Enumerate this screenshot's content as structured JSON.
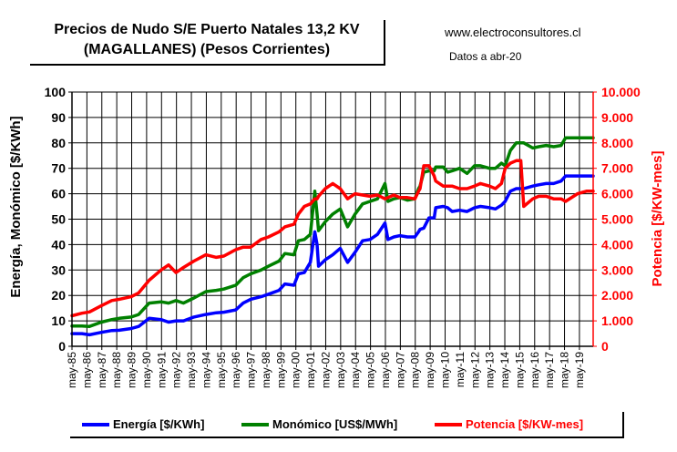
{
  "header": {
    "title_line1": "Precios de Nudo S/E Puerto Natales 13,2 KV",
    "title_line2": "(MAGALLANES) (Pesos Corrientes)",
    "website": "www.electroconsultores.cl",
    "data_date": "Datos a abr-20"
  },
  "chart_data": {
    "type": "line",
    "xlabel": "",
    "ylabel": "Energía, Monómico [$/KWh]",
    "y2label": "Potencia [$/KW-mes]",
    "ylim": [
      0,
      100
    ],
    "y2lim": [
      0,
      10000
    ],
    "y_ticks": [
      "0",
      "10",
      "20",
      "30",
      "40",
      "50",
      "60",
      "70",
      "80",
      "90",
      "100"
    ],
    "y2_ticks": [
      "0",
      "1.000",
      "2.000",
      "3.000",
      "4.000",
      "5.000",
      "6.000",
      "7.000",
      "8.000",
      "9.000",
      "10.000"
    ],
    "xlim": [
      1985.33,
      2020.25
    ],
    "categories": [
      "may-85",
      "may-86",
      "may-87",
      "may-88",
      "may-89",
      "may-90",
      "may-91",
      "may-92",
      "may-93",
      "may-94",
      "may-95",
      "may-96",
      "may-97",
      "may-98",
      "may-99",
      "may-00",
      "may-01",
      "may-02",
      "may-03",
      "may-04",
      "may-05",
      "may-06",
      "may-07",
      "may-08",
      "may-09",
      "may-10",
      "may-11",
      "may-12",
      "may-13",
      "may-14",
      "may-15",
      "may-16",
      "may-17",
      "may-18",
      "may-19"
    ],
    "grid": true,
    "legend_position": "bottom",
    "series": [
      {
        "name": "Energía [$/KWh]",
        "color": "#0000FF",
        "axis": "left",
        "x": [
          1985.33,
          1986,
          1986.5,
          1987.3,
          1988,
          1988.5,
          1989.3,
          1989.8,
          1990.5,
          1991.3,
          1991.8,
          1992.3,
          1992.8,
          1993.5,
          1994.3,
          1995,
          1995.5,
          1996.3,
          1996.8,
          1997.3,
          1998,
          1998.5,
          1999.2,
          1999.6,
          2000.2,
          2000.5,
          2000.9,
          2001.3,
          2001.6,
          2001.75,
          2001.85,
          2002.3,
          2002.8,
          2003.3,
          2003.8,
          2004.3,
          2004.8,
          2005.3,
          2005.8,
          2006.3,
          2006.5,
          2006.9,
          2007.3,
          2007.8,
          2008.3,
          2008.55,
          2008.65,
          2008.9,
          2009.25,
          2009.6,
          2009.7,
          2010.2,
          2010.5,
          2010.8,
          2011.3,
          2011.8,
          2012.3,
          2012.7,
          2013.3,
          2013.7,
          2014.1,
          2014.35,
          2014.7,
          2015.1,
          2015.4,
          2015.6,
          2016.2,
          2016.6,
          2017.1,
          2017.6,
          2018.1,
          2018.4,
          2019.2,
          2019.8,
          2020.25
        ],
        "values": [
          5,
          5,
          4.5,
          5.5,
          6.2,
          6.3,
          7,
          7.8,
          11,
          10.5,
          9.5,
          10,
          10,
          11.5,
          12.5,
          13.2,
          13.4,
          14.3,
          17,
          18.5,
          19.5,
          20.5,
          22,
          24.5,
          24,
          28.5,
          29,
          33,
          45,
          40,
          31.5,
          34,
          36,
          38.5,
          33,
          37,
          41.5,
          42,
          44,
          48.5,
          42,
          43,
          43.5,
          43,
          43,
          45,
          46,
          46.5,
          50.5,
          50.5,
          54.5,
          55,
          54.5,
          53,
          53.5,
          53,
          54.5,
          55,
          54.5,
          54,
          55.5,
          57,
          61,
          62,
          62,
          62,
          63,
          63.5,
          64,
          64,
          65,
          67,
          67,
          67,
          67
        ]
      },
      {
        "name": "Monómico [US$/MWh]",
        "color": "#008000",
        "axis": "left",
        "x": [
          1985.33,
          1986,
          1986.5,
          1987.3,
          1988,
          1988.5,
          1989.3,
          1989.8,
          1990.5,
          1991.3,
          1991.8,
          1992.3,
          1992.8,
          1993.5,
          1994.3,
          1995,
          1995.5,
          1996.3,
          1996.8,
          1997.3,
          1998,
          1998.5,
          1999.2,
          1999.6,
          2000.2,
          2000.5,
          2000.9,
          2001.3,
          2001.6,
          2001.75,
          2001.85,
          2002.3,
          2002.8,
          2003.3,
          2003.8,
          2004.3,
          2004.8,
          2005.3,
          2005.8,
          2006.3,
          2006.5,
          2006.9,
          2007.3,
          2007.8,
          2008.3,
          2008.55,
          2008.65,
          2008.9,
          2009.25,
          2009.6,
          2009.7,
          2010.2,
          2010.5,
          2010.8,
          2011.3,
          2011.8,
          2012.3,
          2012.7,
          2013.3,
          2013.7,
          2014.1,
          2014.35,
          2014.7,
          2015.1,
          2015.4,
          2015.6,
          2016.2,
          2016.6,
          2017.1,
          2017.6,
          2018.1,
          2018.4,
          2019.2,
          2019.8,
          2020.25
        ],
        "values": [
          8,
          8,
          7.8,
          9.5,
          10.5,
          11,
          11.5,
          12.5,
          17,
          17.5,
          17,
          18,
          17,
          19,
          21.5,
          22,
          22.5,
          24,
          27,
          28.5,
          30,
          31.5,
          33.5,
          36.5,
          36,
          41.5,
          42,
          44,
          61,
          52,
          45.5,
          49,
          52,
          54,
          47,
          52,
          56,
          57,
          58,
          64,
          57,
          58,
          58.5,
          57.5,
          58,
          62,
          63,
          68.5,
          69,
          69,
          70.5,
          70.5,
          68.5,
          69,
          70,
          68,
          71,
          71,
          70,
          70,
          72,
          71,
          77,
          80,
          80,
          80,
          78,
          78.5,
          79,
          78.5,
          79,
          82,
          82,
          82,
          82
        ]
      },
      {
        "name": "Potencia [$/KW-mes]",
        "color": "#FF0000",
        "axis": "right",
        "x": [
          1985.33,
          1986,
          1986.5,
          1987.3,
          1988,
          1988.5,
          1989.3,
          1989.8,
          1990.5,
          1991.3,
          1991.8,
          1992.3,
          1992.8,
          1993.5,
          1994.3,
          1995,
          1995.5,
          1996.3,
          1996.8,
          1997.3,
          1998,
          1998.5,
          1999.2,
          1999.6,
          2000.2,
          2000.5,
          2000.9,
          2001.3,
          2001.6,
          2001.75,
          2001.85,
          2002.3,
          2002.8,
          2003.3,
          2003.8,
          2004.3,
          2004.8,
          2005.3,
          2005.8,
          2006.3,
          2006.5,
          2006.9,
          2007.3,
          2007.8,
          2008.3,
          2008.55,
          2008.65,
          2008.9,
          2009.25,
          2009.6,
          2009.7,
          2010.2,
          2010.5,
          2010.8,
          2011.3,
          2011.8,
          2012.3,
          2012.7,
          2013.3,
          2013.7,
          2014.1,
          2014.35,
          2014.7,
          2015.1,
          2015.4,
          2015.6,
          2016.2,
          2016.6,
          2017.1,
          2017.6,
          2018.1,
          2018.4,
          2019.2,
          2019.8,
          2020.25
        ],
        "values": [
          1200,
          1300,
          1350,
          1600,
          1800,
          1850,
          1950,
          2100,
          2600,
          3000,
          3200,
          2900,
          3100,
          3350,
          3600,
          3500,
          3550,
          3800,
          3900,
          3900,
          4200,
          4300,
          4500,
          4700,
          4800,
          5200,
          5500,
          5600,
          5800,
          5800,
          5900,
          6200,
          6400,
          6200,
          5800,
          6000,
          5950,
          5900,
          5950,
          5800,
          5850,
          5950,
          5850,
          5850,
          5800,
          6100,
          6200,
          7100,
          7100,
          6700,
          6500,
          6300,
          6300,
          6300,
          6200,
          6200,
          6300,
          6400,
          6300,
          6200,
          6400,
          7000,
          7200,
          7300,
          7300,
          5500,
          5800,
          5900,
          5900,
          5800,
          5800,
          5700,
          6000,
          6100,
          6100
        ]
      }
    ]
  }
}
